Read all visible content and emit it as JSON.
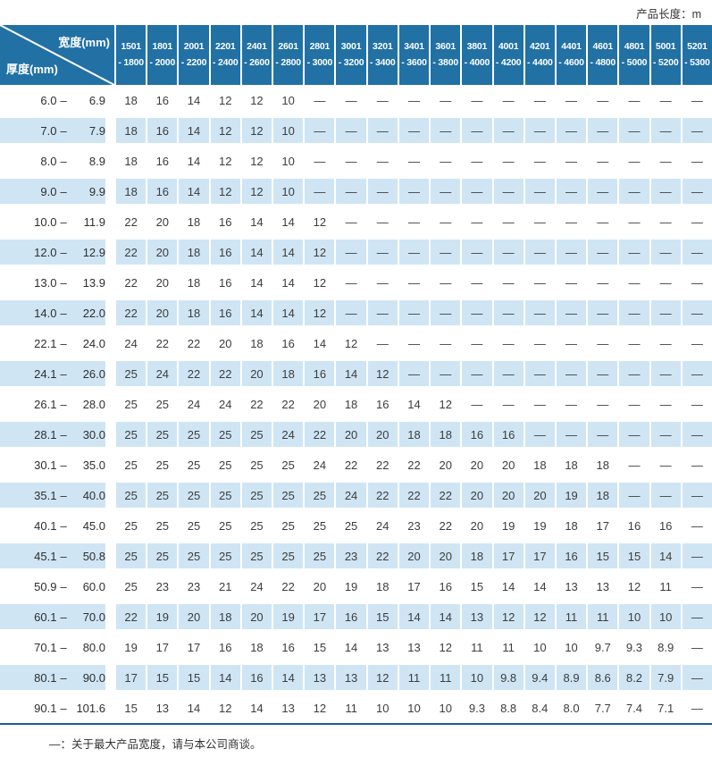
{
  "colors": {
    "header_bg": "#2171A5",
    "row_alt_bg": "#CFE5F4",
    "rule": "#1C5D87",
    "text": "#3D3D3D"
  },
  "chart_data": {
    "type": "table",
    "unit_note": "产品长度：m",
    "corner_top_right": "宽度(mm)",
    "corner_bottom_left": "厚度(mm)",
    "label_separator": "–",
    "missing_symbol": "—",
    "footnote": "—：关于最大产品宽度，请与本公司商谈。",
    "col_headers": [
      [
        "1501",
        "- 1800"
      ],
      [
        "1801",
        "- 2000"
      ],
      [
        "2001",
        "- 2200"
      ],
      [
        "2201",
        "- 2400"
      ],
      [
        "2401",
        "- 2600"
      ],
      [
        "2601",
        "- 2800"
      ],
      [
        "2801",
        "- 3000"
      ],
      [
        "3001",
        "- 3200"
      ],
      [
        "3201",
        "- 3400"
      ],
      [
        "3401",
        "- 3600"
      ],
      [
        "3601",
        "- 3800"
      ],
      [
        "3801",
        "- 4000"
      ],
      [
        "4001",
        "- 4200"
      ],
      [
        "4201",
        "- 4400"
      ],
      [
        "4401",
        "- 4600"
      ],
      [
        "4601",
        "- 4800"
      ],
      [
        "4801",
        "- 5000"
      ],
      [
        "5001",
        "- 5200"
      ],
      [
        "5201",
        "- 5300"
      ]
    ],
    "row_headers": [
      {
        "min": "6.0",
        "max": "6.9"
      },
      {
        "min": "7.0",
        "max": "7.9"
      },
      {
        "min": "8.0",
        "max": "8.9"
      },
      {
        "min": "9.0",
        "max": "9.9"
      },
      {
        "min": "10.0",
        "max": "11.9"
      },
      {
        "min": "12.0",
        "max": "12.9"
      },
      {
        "min": "13.0",
        "max": "13.9"
      },
      {
        "min": "14.0",
        "max": "22.0"
      },
      {
        "min": "22.1",
        "max": "24.0"
      },
      {
        "min": "24.1",
        "max": "26.0"
      },
      {
        "min": "26.1",
        "max": "28.0"
      },
      {
        "min": "28.1",
        "max": "30.0"
      },
      {
        "min": "30.1",
        "max": "35.0"
      },
      {
        "min": "35.1",
        "max": "40.0"
      },
      {
        "min": "40.1",
        "max": "45.0"
      },
      {
        "min": "45.1",
        "max": "50.8"
      },
      {
        "min": "50.9",
        "max": "60.0"
      },
      {
        "min": "60.1",
        "max": "70.0"
      },
      {
        "min": "70.1",
        "max": "80.0"
      },
      {
        "min": "80.1",
        "max": "90.0"
      },
      {
        "min": "90.1",
        "max": "101.6"
      }
    ],
    "rows": [
      [
        "18",
        "16",
        "14",
        "12",
        "12",
        "10",
        "—",
        "—",
        "—",
        "—",
        "—",
        "—",
        "—",
        "—",
        "—",
        "—",
        "—",
        "—",
        "—"
      ],
      [
        "18",
        "16",
        "14",
        "12",
        "12",
        "10",
        "—",
        "—",
        "—",
        "—",
        "—",
        "—",
        "—",
        "—",
        "—",
        "—",
        "—",
        "—",
        "—"
      ],
      [
        "18",
        "16",
        "14",
        "12",
        "12",
        "10",
        "—",
        "—",
        "—",
        "—",
        "—",
        "—",
        "—",
        "—",
        "—",
        "—",
        "—",
        "—",
        "—"
      ],
      [
        "18",
        "16",
        "14",
        "12",
        "12",
        "10",
        "—",
        "—",
        "—",
        "—",
        "—",
        "—",
        "—",
        "—",
        "—",
        "—",
        "—",
        "—",
        "—"
      ],
      [
        "22",
        "20",
        "18",
        "16",
        "14",
        "14",
        "12",
        "—",
        "—",
        "—",
        "—",
        "—",
        "—",
        "—",
        "—",
        "—",
        "—",
        "—",
        "—"
      ],
      [
        "22",
        "20",
        "18",
        "16",
        "14",
        "14",
        "12",
        "—",
        "—",
        "—",
        "—",
        "—",
        "—",
        "—",
        "—",
        "—",
        "—",
        "—",
        "—"
      ],
      [
        "22",
        "20",
        "18",
        "16",
        "14",
        "14",
        "12",
        "—",
        "—",
        "—",
        "—",
        "—",
        "—",
        "—",
        "—",
        "—",
        "—",
        "—",
        "—"
      ],
      [
        "22",
        "20",
        "18",
        "16",
        "14",
        "14",
        "12",
        "—",
        "—",
        "—",
        "—",
        "—",
        "—",
        "—",
        "—",
        "—",
        "—",
        "—",
        "—"
      ],
      [
        "24",
        "22",
        "22",
        "20",
        "18",
        "16",
        "14",
        "12",
        "—",
        "—",
        "—",
        "—",
        "—",
        "—",
        "—",
        "—",
        "—",
        "—",
        "—"
      ],
      [
        "25",
        "24",
        "22",
        "22",
        "20",
        "18",
        "16",
        "14",
        "12",
        "—",
        "—",
        "—",
        "—",
        "—",
        "—",
        "—",
        "—",
        "—",
        "—"
      ],
      [
        "25",
        "25",
        "24",
        "24",
        "22",
        "22",
        "20",
        "18",
        "16",
        "14",
        "12",
        "—",
        "—",
        "—",
        "—",
        "—",
        "—",
        "—",
        "—"
      ],
      [
        "25",
        "25",
        "25",
        "25",
        "25",
        "24",
        "22",
        "20",
        "20",
        "18",
        "18",
        "16",
        "16",
        "—",
        "—",
        "—",
        "—",
        "—",
        "—"
      ],
      [
        "25",
        "25",
        "25",
        "25",
        "25",
        "25",
        "24",
        "22",
        "22",
        "22",
        "20",
        "20",
        "20",
        "18",
        "18",
        "18",
        "—",
        "—",
        "—"
      ],
      [
        "25",
        "25",
        "25",
        "25",
        "25",
        "25",
        "25",
        "24",
        "22",
        "22",
        "22",
        "20",
        "20",
        "20",
        "19",
        "18",
        "—",
        "—",
        "—"
      ],
      [
        "25",
        "25",
        "25",
        "25",
        "25",
        "25",
        "25",
        "25",
        "24",
        "23",
        "22",
        "20",
        "19",
        "19",
        "18",
        "17",
        "16",
        "16",
        "—"
      ],
      [
        "25",
        "25",
        "25",
        "25",
        "25",
        "25",
        "25",
        "23",
        "22",
        "20",
        "20",
        "18",
        "17",
        "17",
        "16",
        "15",
        "15",
        "14",
        "—"
      ],
      [
        "25",
        "23",
        "23",
        "21",
        "24",
        "22",
        "20",
        "19",
        "18",
        "17",
        "16",
        "15",
        "14",
        "14",
        "13",
        "13",
        "12",
        "11",
        "—"
      ],
      [
        "22",
        "19",
        "20",
        "18",
        "20",
        "19",
        "17",
        "16",
        "15",
        "14",
        "14",
        "13",
        "12",
        "12",
        "11",
        "11",
        "10",
        "10",
        "—"
      ],
      [
        "19",
        "17",
        "17",
        "16",
        "18",
        "16",
        "15",
        "14",
        "13",
        "13",
        "12",
        "11",
        "11",
        "10",
        "10",
        "9.7",
        "9.3",
        "8.9",
        "—"
      ],
      [
        "17",
        "15",
        "15",
        "14",
        "16",
        "14",
        "13",
        "13",
        "12",
        "11",
        "11",
        "10",
        "9.8",
        "9.4",
        "8.9",
        "8.6",
        "8.2",
        "7.9",
        "—"
      ],
      [
        "15",
        "13",
        "14",
        "12",
        "14",
        "13",
        "12",
        "11",
        "10",
        "10",
        "10",
        "9.3",
        "8.8",
        "8.4",
        "8.0",
        "7.7",
        "7.4",
        "7.1",
        "—"
      ]
    ]
  }
}
